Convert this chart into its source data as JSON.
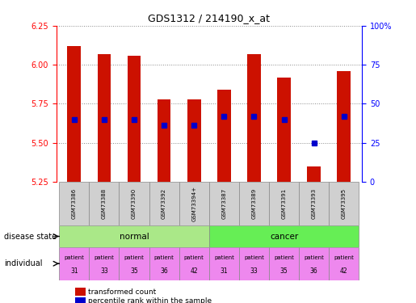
{
  "title": "GDS1312 / 214190_x_at",
  "samples": [
    "GSM73386",
    "GSM73388",
    "GSM73390",
    "GSM73392",
    "GSM73394+",
    "GSM73387",
    "GSM73389",
    "GSM73391",
    "GSM73393",
    "GSM73395"
  ],
  "transformed_count": [
    6.12,
    6.07,
    6.06,
    5.78,
    5.78,
    5.84,
    6.07,
    5.92,
    5.35,
    5.96
  ],
  "percentile_rank": [
    40,
    40,
    40,
    36,
    36,
    42,
    42,
    40,
    25,
    42
  ],
  "y_min": 5.25,
  "y_max": 6.25,
  "y_ticks": [
    5.25,
    5.5,
    5.75,
    6.0,
    6.25
  ],
  "right_y_ticks": [
    0,
    25,
    50,
    75,
    100
  ],
  "right_y_labels": [
    "0",
    "25",
    "50",
    "75",
    "100%"
  ],
  "bar_color": "#cc1100",
  "dot_color": "#0000cc",
  "normal_color": "#aae888",
  "cancer_color": "#66ee55",
  "individual_color": "#ee88ee",
  "sample_box_color": "#d0d0d0",
  "patients": [
    "patient\n31",
    "patient\n33",
    "patient\n35",
    "patient\n36",
    "patient\n42",
    "patient\n31",
    "patient\n33",
    "patient\n35",
    "patient\n36",
    "patient\n42"
  ],
  "left_label_disease": "disease state",
  "left_label_individual": "individual",
  "legend_red": "transformed count",
  "legend_blue": "percentile rank within the sample",
  "bar_width": 0.45,
  "grid_color": "#888888"
}
